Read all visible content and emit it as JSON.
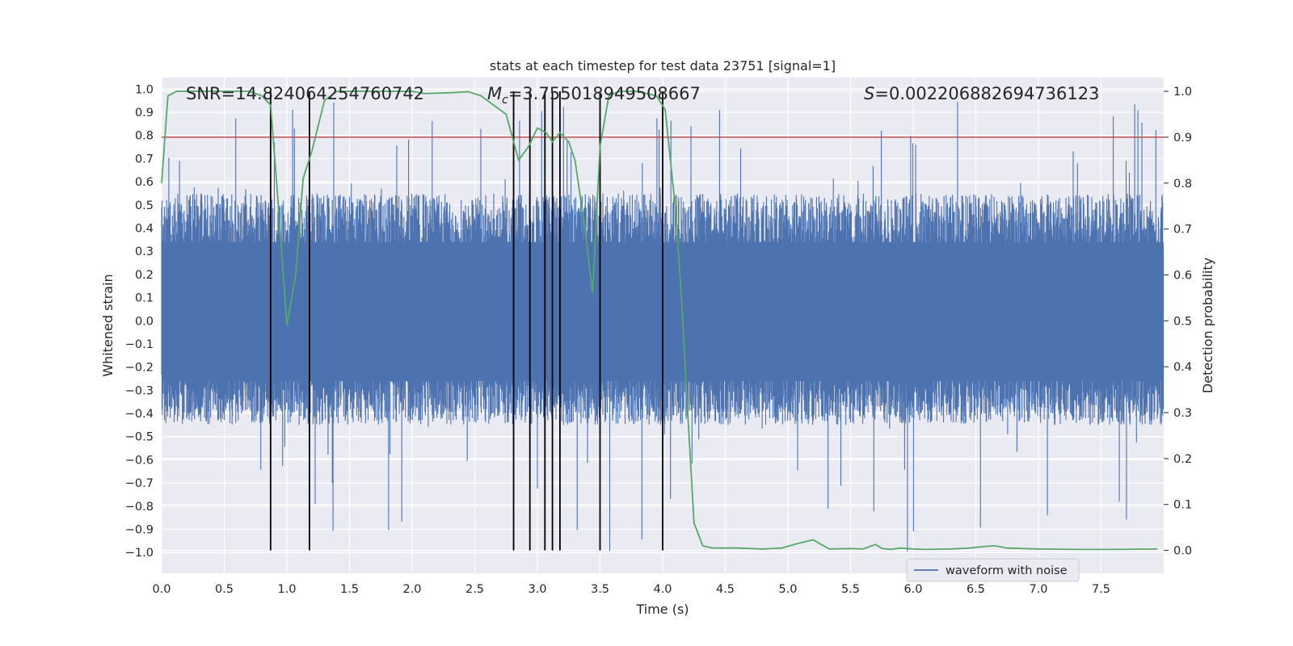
{
  "chart_data": {
    "type": "line",
    "title": "stats at each timestep for test data 23751 [signal=1]",
    "xlabel": "Time (s)",
    "ylabel_left": "Whitened strain",
    "ylabel_right": "Detection probability",
    "xlim": [
      0.0,
      8.0
    ],
    "ylim_left": [
      -1.09,
      1.05
    ],
    "ylim_right": [
      -0.05,
      1.03
    ],
    "x_ticks": [
      "0.0",
      "0.5",
      "1.0",
      "1.5",
      "2.0",
      "2.5",
      "3.0",
      "3.5",
      "4.0",
      "4.5",
      "5.0",
      "5.5",
      "6.0",
      "6.5",
      "7.0",
      "7.5"
    ],
    "y_ticks_left": [
      "1.0",
      "0.9",
      "0.8",
      "0.7",
      "0.6",
      "0.5",
      "0.4",
      "0.3",
      "0.2",
      "0.1",
      "0.0",
      "−0.1",
      "−0.2",
      "−0.3",
      "−0.4",
      "−0.5",
      "−0.6",
      "−0.7",
      "−0.8",
      "−0.9",
      "−1.0"
    ],
    "y_ticks_right": [
      "1.0",
      "0.9",
      "0.8",
      "0.7",
      "0.6",
      "0.5",
      "0.4",
      "0.3",
      "0.2",
      "0.1",
      "0.0"
    ],
    "annotations": {
      "snr": "SNR=14.824064254760742",
      "mc_symbol": "M",
      "mc_subscript": "c",
      "mc_value": "=3.755018949508667",
      "s_symbol": "S",
      "s_value": "=0.002206882694736123"
    },
    "threshold": {
      "value": 0.9,
      "axis": "right",
      "color": "#c44e52"
    },
    "vertical_markers": [
      0.87,
      1.18,
      2.81,
      2.94,
      3.06,
      3.12,
      3.18,
      3.5,
      4.0
    ],
    "series": [
      {
        "name": "waveform with noise",
        "axis": "left",
        "color": "#4c72b0",
        "description": "whitened strain noise, approx. uniform band -0.45..0.55 with spikes",
        "envelope": {
          "typical_low": -0.45,
          "typical_high": 0.55,
          "spike_max": 0.95,
          "spike_min": -1.0
        }
      },
      {
        "name": "detection probability",
        "axis": "right",
        "color": "#55a868",
        "x": [
          0.0,
          0.05,
          0.12,
          0.3,
          0.5,
          0.7,
          0.8,
          0.87,
          0.93,
          1.0,
          1.07,
          1.13,
          1.2,
          1.3,
          1.4,
          1.5,
          1.8,
          2.0,
          2.1,
          2.3,
          2.45,
          2.55,
          2.65,
          2.75,
          2.8,
          2.85,
          2.93,
          3.0,
          3.07,
          3.12,
          3.18,
          3.25,
          3.3,
          3.38,
          3.44,
          3.5,
          3.57,
          3.65,
          3.8,
          3.95,
          4.02,
          4.1,
          4.15,
          4.2,
          4.25,
          4.32,
          4.4,
          4.6,
          4.8,
          4.95,
          5.05,
          5.2,
          5.33,
          5.5,
          5.6,
          5.7,
          5.75,
          5.82,
          5.9,
          6.0,
          6.1,
          6.3,
          6.45,
          6.55,
          6.65,
          6.75,
          7.0,
          7.3,
          7.6,
          7.95
        ],
        "values": [
          0.8,
          0.99,
          1.0,
          1.0,
          1.0,
          1.0,
          0.99,
          0.97,
          0.76,
          0.49,
          0.6,
          0.81,
          0.87,
          0.98,
          1.0,
          1.0,
          1.0,
          1.0,
          0.995,
          0.997,
          0.999,
          0.99,
          0.97,
          0.95,
          0.9,
          0.85,
          0.88,
          0.92,
          0.91,
          0.89,
          0.91,
          0.89,
          0.85,
          0.7,
          0.56,
          0.88,
          0.99,
          1.0,
          1.0,
          0.99,
          0.96,
          0.75,
          0.55,
          0.3,
          0.06,
          0.01,
          0.005,
          0.005,
          0.003,
          0.005,
          0.013,
          0.023,
          0.003,
          0.004,
          0.003,
          0.013,
          0.004,
          0.002,
          0.005,
          0.003,
          0.002,
          0.003,
          0.005,
          0.008,
          0.01,
          0.005,
          0.003,
          0.002,
          0.002,
          0.003
        ]
      }
    ],
    "legend": {
      "position": "lower-right-center",
      "entries": [
        "waveform with noise"
      ]
    }
  }
}
